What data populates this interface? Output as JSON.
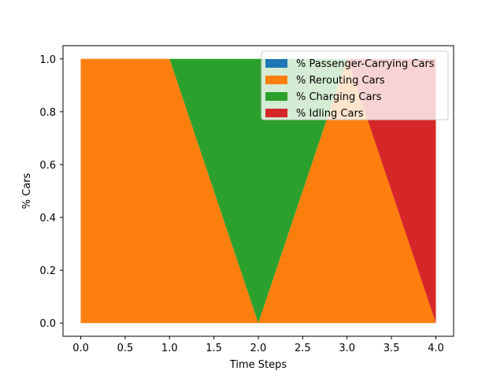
{
  "chart_data": {
    "type": "area",
    "stacked": true,
    "title": "",
    "xlabel": "Time Steps",
    "ylabel": "% Cars",
    "x": [
      0,
      1,
      2,
      3,
      4
    ],
    "xlim": [
      -0.2,
      4.2
    ],
    "ylim": [
      -0.05,
      1.05
    ],
    "xticks": [
      0.0,
      0.5,
      1.0,
      1.5,
      2.0,
      2.5,
      3.0,
      3.5,
      4.0
    ],
    "xtick_labels": [
      "0.0",
      "0.5",
      "1.0",
      "1.5",
      "2.0",
      "2.5",
      "3.0",
      "3.5",
      "4.0"
    ],
    "yticks": [
      0.0,
      0.2,
      0.4,
      0.6,
      0.8,
      1.0
    ],
    "ytick_labels": [
      "0.0",
      "0.2",
      "0.4",
      "0.6",
      "0.8",
      "1.0"
    ],
    "grid": false,
    "legend_position": "top-right",
    "series": [
      {
        "name": "% Passenger-Carrying Cars",
        "color": "#1f77b4",
        "values": [
          0,
          0,
          0,
          0,
          0
        ]
      },
      {
        "name": "% Rerouting Cars",
        "color": "#ff7f0e",
        "values": [
          1,
          1,
          0,
          1,
          0
        ]
      },
      {
        "name": "% Charging Cars",
        "color": "#2ca02c",
        "values": [
          0,
          0,
          1,
          0,
          0
        ]
      },
      {
        "name": "% Idling Cars",
        "color": "#d62728",
        "values": [
          0,
          0,
          0,
          0,
          1
        ]
      }
    ]
  }
}
